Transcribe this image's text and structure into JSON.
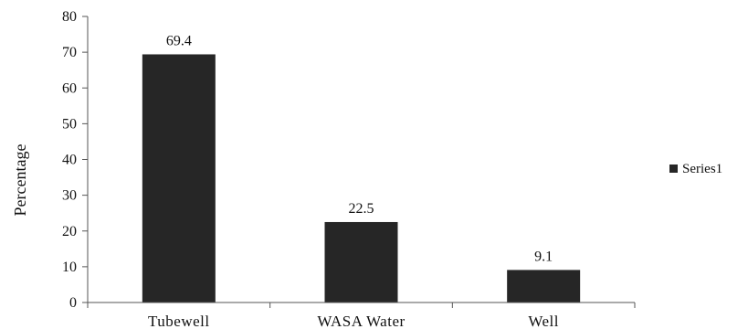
{
  "chart_data": {
    "type": "bar",
    "categories": [
      "Tubewell",
      "WASA Water",
      "Well"
    ],
    "series": [
      {
        "name": "Series1",
        "values": [
          69.4,
          22.5,
          9.1
        ],
        "color": "#262626"
      }
    ],
    "data_labels": [
      "69.4",
      "22.5",
      "9.1"
    ],
    "title": "",
    "xlabel": "",
    "ylabel": "Percentage",
    "ylim": [
      0,
      80
    ],
    "yticks": [
      0,
      10,
      20,
      30,
      40,
      50,
      60,
      70,
      80
    ],
    "grid": false,
    "legend_position": "right"
  }
}
